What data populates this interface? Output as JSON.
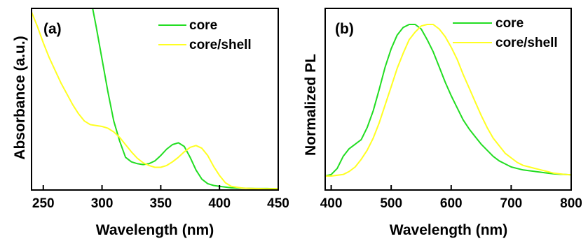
{
  "chart_data": [
    {
      "panel_label": "(a)",
      "type": "line",
      "xlabel": "Wavelength (nm)",
      "ylabel": "Absorbance (a.u.)",
      "xlim": [
        240,
        450
      ],
      "ylim": [
        0,
        1.0
      ],
      "xticks": [
        250,
        300,
        350,
        400,
        450
      ],
      "yticks_shown": false,
      "grid": false,
      "legend": "top-right",
      "series": [
        {
          "name": "core",
          "color": "#22dd22",
          "x": [
            292,
            295,
            300,
            305,
            310,
            315,
            320,
            325,
            330,
            335,
            340,
            345,
            350,
            355,
            360,
            365,
            370,
            375,
            380,
            385,
            390,
            395,
            400,
            410,
            420,
            430,
            440,
            450
          ],
          "y": [
            1.0,
            0.9,
            0.72,
            0.54,
            0.38,
            0.27,
            0.18,
            0.155,
            0.145,
            0.14,
            0.145,
            0.16,
            0.19,
            0.225,
            0.25,
            0.26,
            0.24,
            0.18,
            0.11,
            0.06,
            0.035,
            0.025,
            0.02,
            0.012,
            0.01,
            0.008,
            0.008,
            0.007
          ]
        },
        {
          "name": "core/shell",
          "color": "#ffff22",
          "x": [
            240,
            245,
            250,
            255,
            260,
            265,
            270,
            275,
            280,
            285,
            290,
            295,
            300,
            305,
            310,
            315,
            320,
            325,
            330,
            335,
            340,
            345,
            350,
            355,
            360,
            365,
            370,
            375,
            380,
            385,
            390,
            395,
            400,
            405,
            410,
            420,
            430,
            440,
            450
          ],
          "y": [
            0.98,
            0.9,
            0.81,
            0.73,
            0.66,
            0.59,
            0.53,
            0.47,
            0.42,
            0.38,
            0.36,
            0.355,
            0.35,
            0.34,
            0.32,
            0.29,
            0.25,
            0.21,
            0.175,
            0.15,
            0.135,
            0.125,
            0.125,
            0.135,
            0.155,
            0.18,
            0.21,
            0.235,
            0.245,
            0.23,
            0.19,
            0.13,
            0.08,
            0.04,
            0.02,
            0.01,
            0.008,
            0.007,
            0.007
          ]
        }
      ]
    },
    {
      "panel_label": "(b)",
      "type": "line",
      "xlabel": "Wavelength (nm)",
      "ylabel": "Normalized PL",
      "xlim": [
        390,
        800
      ],
      "ylim": [
        0,
        1.0
      ],
      "xticks": [
        400,
        500,
        600,
        700,
        800
      ],
      "yticks_shown": false,
      "grid": false,
      "legend": "top-right",
      "series": [
        {
          "name": "core",
          "color": "#22dd22",
          "x": [
            390,
            400,
            410,
            420,
            430,
            440,
            450,
            460,
            470,
            480,
            490,
            500,
            510,
            520,
            530,
            540,
            550,
            560,
            570,
            580,
            590,
            600,
            610,
            620,
            630,
            640,
            650,
            660,
            670,
            680,
            690,
            700,
            710,
            720,
            730,
            740,
            750,
            760,
            770,
            780,
            790,
            800
          ],
          "y": [
            0.0,
            0.01,
            0.05,
            0.13,
            0.18,
            0.21,
            0.24,
            0.32,
            0.43,
            0.57,
            0.72,
            0.84,
            0.93,
            0.98,
            1.0,
            1.0,
            0.97,
            0.9,
            0.82,
            0.72,
            0.62,
            0.53,
            0.45,
            0.37,
            0.31,
            0.26,
            0.21,
            0.17,
            0.13,
            0.1,
            0.08,
            0.06,
            0.05,
            0.04,
            0.035,
            0.03,
            0.025,
            0.02,
            0.015,
            0.012,
            0.01,
            0.008
          ]
        },
        {
          "name": "core/shell",
          "color": "#ffff22",
          "x": [
            390,
            400,
            410,
            420,
            430,
            440,
            450,
            460,
            470,
            480,
            490,
            500,
            510,
            520,
            530,
            540,
            550,
            560,
            570,
            580,
            590,
            600,
            610,
            620,
            630,
            640,
            650,
            660,
            670,
            680,
            690,
            700,
            710,
            720,
            730,
            740,
            750,
            760,
            770,
            780,
            790,
            800
          ],
          "y": [
            0.0,
            0.0,
            0.005,
            0.01,
            0.03,
            0.06,
            0.11,
            0.17,
            0.25,
            0.35,
            0.47,
            0.59,
            0.71,
            0.81,
            0.9,
            0.95,
            0.99,
            1.0,
            1.0,
            0.97,
            0.92,
            0.85,
            0.77,
            0.67,
            0.58,
            0.49,
            0.4,
            0.32,
            0.25,
            0.2,
            0.15,
            0.12,
            0.09,
            0.07,
            0.06,
            0.05,
            0.04,
            0.03,
            0.02,
            0.015,
            0.01,
            0.008
          ]
        }
      ]
    }
  ]
}
